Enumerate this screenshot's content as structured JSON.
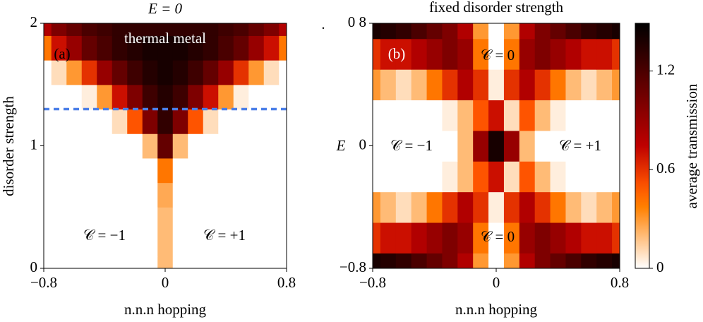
{
  "chart_data": [
    {
      "type": "heatmap",
      "title": "E = 0",
      "xlabel": "n.n.n hopping",
      "ylabel": "disorder strength",
      "xlim": [
        -0.8,
        0.8
      ],
      "ylim": [
        0,
        2
      ],
      "xticks": [
        {
          "value": -0.8,
          "label": "−0.8"
        },
        0,
        0.8
      ],
      "yticks": [
        0,
        1,
        2
      ],
      "x": [
        -0.8,
        -0.7,
        -0.6,
        -0.5,
        -0.4,
        -0.3,
        -0.2,
        -0.1,
        0,
        0.1,
        0.2,
        0.3,
        0.4,
        0.5,
        0.6,
        0.7,
        0.8
      ],
      "y": [
        0,
        0.2,
        0.4,
        0.6,
        0.8,
        1.0,
        1.2,
        1.4,
        1.6,
        1.8,
        2.0
      ],
      "z": [
        [
          0,
          0,
          0,
          0,
          0,
          0,
          0,
          0,
          0.2,
          0,
          0,
          0,
          0,
          0,
          0,
          0,
          0
        ],
        [
          0,
          0,
          0,
          0,
          0,
          0,
          0,
          0,
          0.2,
          0,
          0,
          0,
          0,
          0,
          0,
          0,
          0
        ],
        [
          0,
          0,
          0,
          0,
          0,
          0,
          0,
          0,
          0.2,
          0,
          0,
          0,
          0,
          0,
          0,
          0,
          0
        ],
        [
          0,
          0,
          0,
          0,
          0,
          0,
          0,
          0,
          0.25,
          0,
          0,
          0,
          0,
          0,
          0,
          0,
          0
        ],
        [
          0,
          0,
          0,
          0,
          0,
          0,
          0,
          0,
          0.4,
          0,
          0,
          0,
          0,
          0,
          0,
          0,
          0
        ],
        [
          0,
          0,
          0,
          0,
          0,
          0,
          0,
          0.2,
          1.1,
          0.2,
          0,
          0,
          0,
          0,
          0,
          0,
          0
        ],
        [
          0,
          0,
          0,
          0,
          0,
          0.1,
          0.5,
          1.0,
          1.3,
          1.0,
          0.5,
          0.1,
          0,
          0,
          0,
          0,
          0
        ],
        [
          0,
          0,
          0,
          0.05,
          0.3,
          0.7,
          1.0,
          1.25,
          1.35,
          1.25,
          1.0,
          0.7,
          0.3,
          0.05,
          0,
          0,
          0
        ],
        [
          0,
          0.1,
          0.3,
          0.6,
          0.9,
          1.1,
          1.25,
          1.35,
          1.4,
          1.35,
          1.25,
          1.1,
          0.9,
          0.6,
          0.3,
          0.1,
          0
        ],
        [
          0.4,
          0.7,
          0.9,
          1.1,
          1.2,
          1.3,
          1.35,
          1.4,
          1.4,
          1.4,
          1.35,
          1.3,
          1.2,
          1.1,
          0.9,
          0.7,
          0.4
        ],
        [
          0.8,
          1.0,
          1.1,
          1.2,
          1.25,
          1.3,
          1.3,
          1.3,
          1.3,
          1.3,
          1.3,
          1.3,
          1.25,
          1.2,
          1.1,
          1.0,
          0.8
        ]
      ],
      "hline": {
        "value": 1.3,
        "color": "#4a7fe8"
      },
      "annotations": [
        "thermal metal",
        "(a)",
        "𝒞 = −1",
        "𝒞 = +1"
      ]
    },
    {
      "type": "heatmap",
      "title": "fixed disorder strength",
      "xlabel": "n.n.n hopping",
      "ylabel": "E",
      "xlim": [
        -0.8,
        0.8
      ],
      "ylim": [
        -0.8,
        0.8
      ],
      "xticks": [
        {
          "value": -0.8,
          "label": "−0.8"
        },
        0,
        0.8
      ],
      "yticks": [
        {
          "value": -0.8,
          "label": "−0.8"
        },
        0,
        {
          "value": 0.8,
          "label": "0 8"
        }
      ],
      "x": [
        -0.8,
        -0.7,
        -0.6,
        -0.5,
        -0.4,
        -0.3,
        -0.2,
        -0.1,
        0,
        0.1,
        0.2,
        0.3,
        0.4,
        0.5,
        0.6,
        0.7,
        0.8
      ],
      "y": [
        -0.8,
        -0.6,
        -0.4,
        -0.2,
        0,
        0.2,
        0.4,
        0.6,
        0.8
      ],
      "z": [
        [
          1.4,
          1.35,
          1.3,
          1.2,
          1.1,
          1.0,
          0.8,
          0.3,
          0,
          0.3,
          0.8,
          1.0,
          1.1,
          1.2,
          1.3,
          1.35,
          1.4
        ],
        [
          0.6,
          0.7,
          0.7,
          0.8,
          0.9,
          1.0,
          0.9,
          0.4,
          0,
          0.4,
          0.9,
          1.0,
          0.9,
          0.8,
          0.7,
          0.7,
          0.6
        ],
        [
          0.3,
          0.2,
          0.1,
          0.2,
          0.4,
          0.6,
          0.8,
          0.6,
          0.05,
          0.6,
          0.8,
          0.6,
          0.4,
          0.2,
          0.1,
          0.2,
          0.3
        ],
        [
          0,
          0,
          0,
          0,
          0,
          0.05,
          0.2,
          0.5,
          0.7,
          0.1,
          0.5,
          0.2,
          0.05,
          0,
          0,
          0,
          0
        ],
        [
          0,
          0,
          0,
          0,
          0,
          0,
          0.2,
          0.9,
          1.4,
          0.9,
          0.2,
          0,
          0,
          0,
          0,
          0,
          0
        ],
        [
          0,
          0,
          0,
          0,
          0,
          0.05,
          0.2,
          0.5,
          0.7,
          0.1,
          0.5,
          0.2,
          0.05,
          0,
          0,
          0,
          0
        ],
        [
          0.3,
          0.2,
          0.1,
          0.2,
          0.4,
          0.6,
          0.8,
          0.6,
          0.05,
          0.6,
          0.8,
          0.6,
          0.4,
          0.2,
          0.1,
          0.2,
          0.3
        ],
        [
          0.6,
          0.7,
          0.7,
          0.8,
          0.9,
          1.0,
          0.9,
          0.4,
          0,
          0.4,
          0.9,
          1.0,
          0.9,
          0.8,
          0.7,
          0.7,
          0.6
        ],
        [
          1.4,
          1.35,
          1.3,
          1.2,
          1.1,
          1.0,
          0.8,
          0.3,
          0,
          0.3,
          0.8,
          1.0,
          1.1,
          1.2,
          1.3,
          1.35,
          1.4
        ]
      ],
      "colorbar": {
        "label": "average transmission",
        "lim": [
          0,
          1.49
        ],
        "ticks": [
          0,
          0.6,
          1.2
        ]
      },
      "annotations": [
        "(b)",
        "𝒞 = 0",
        "𝒞 = 0",
        "𝒞 = −1",
        "𝒞 = +1",
        "."
      ]
    }
  ]
}
